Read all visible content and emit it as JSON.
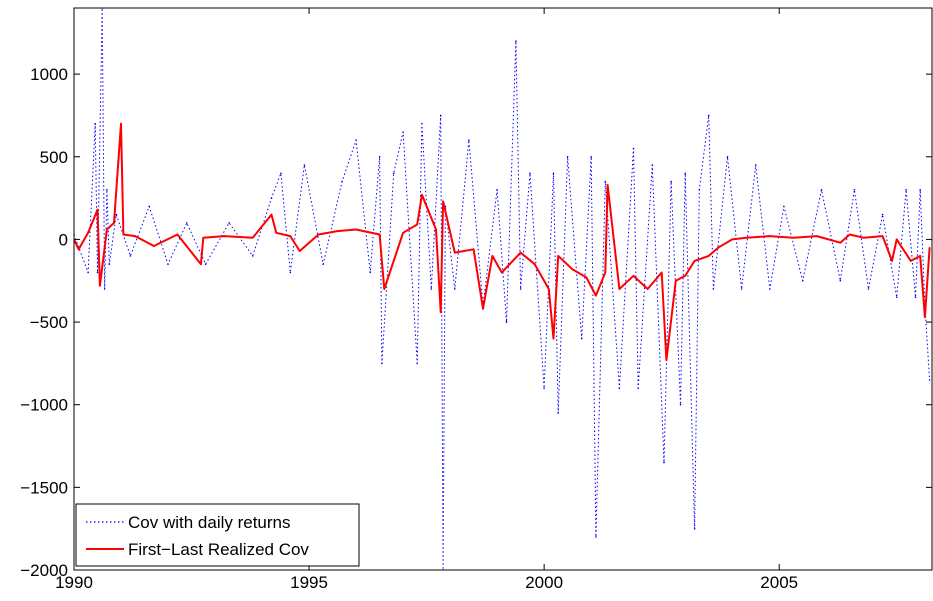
{
  "chart_data": {
    "type": "line",
    "title": "",
    "xlabel": "",
    "ylabel": "",
    "xlim": [
      1990,
      2008.25
    ],
    "ylim": [
      -2000,
      1400
    ],
    "grid": false,
    "legend_position": "bottom-left",
    "x_ticks": [
      1990,
      1995,
      2000,
      2005
    ],
    "x_tick_labels": [
      "1990",
      "1995",
      "2000",
      "2005"
    ],
    "y_ticks": [
      -2000,
      -1500,
      -1000,
      -500,
      0,
      500,
      1000
    ],
    "y_tick_labels": [
      "−2000",
      "−1500",
      "−1000",
      "−500",
      "0",
      "500",
      "1000"
    ],
    "series": [
      {
        "name": "Cov with daily returns",
        "color": "#0000ff",
        "line_style": "dotted",
        "x": [
          1990.0,
          1990.3,
          1990.45,
          1990.5,
          1990.6,
          1990.65,
          1990.7,
          1990.75,
          1990.9,
          1991.2,
          1991.6,
          1992.0,
          1992.4,
          1992.8,
          1993.3,
          1993.8,
          1994.2,
          1994.4,
          1994.6,
          1994.9,
          1995.3,
          1995.7,
          1996.0,
          1996.3,
          1996.5,
          1996.55,
          1996.8,
          1997.0,
          1997.3,
          1997.4,
          1997.6,
          1997.8,
          1997.85,
          1997.9,
          1998.1,
          1998.4,
          1998.7,
          1999.0,
          1999.2,
          1999.4,
          1999.5,
          1999.7,
          2000.0,
          2000.2,
          2000.3,
          2000.5,
          2000.8,
          2001.0,
          2001.1,
          2001.3,
          2001.6,
          2001.9,
          2002.0,
          2002.3,
          2002.55,
          2002.7,
          2002.9,
          2003.0,
          2003.2,
          2003.3,
          2003.5,
          2003.6,
          2003.9,
          2004.2,
          2004.5,
          2004.8,
          2005.1,
          2005.5,
          2005.9,
          2006.3,
          2006.6,
          2006.9,
          2007.2,
          2007.5,
          2007.7,
          2007.9,
          2008.0,
          2008.1,
          2008.2
        ],
        "values": [
          30,
          -200,
          700,
          -200,
          1400,
          -300,
          300,
          -150,
          150,
          -100,
          200,
          -150,
          100,
          -150,
          100,
          -100,
          250,
          400,
          -200,
          450,
          -150,
          350,
          600,
          -200,
          500,
          -750,
          400,
          650,
          -750,
          700,
          -300,
          750,
          -2000,
          200,
          -300,
          600,
          -400,
          300,
          -500,
          1200,
          -300,
          400,
          -900,
          400,
          -1050,
          500,
          -600,
          500,
          -1800,
          350,
          -900,
          550,
          -900,
          450,
          -1350,
          350,
          -1000,
          400,
          -1750,
          300,
          750,
          -300,
          500,
          -300,
          450,
          -300,
          200,
          -250,
          300,
          -250,
          300,
          -300,
          150,
          -350,
          300,
          -350,
          300,
          -400,
          -850
        ]
      },
      {
        "name": "First−Last Realized Cov",
        "color": "#ff0000",
        "line_style": "solid",
        "x": [
          1990.0,
          1990.1,
          1990.3,
          1990.5,
          1990.55,
          1990.7,
          1990.85,
          1991.0,
          1991.05,
          1991.3,
          1991.7,
          1992.2,
          1992.7,
          1992.75,
          1993.2,
          1993.8,
          1994.2,
          1994.3,
          1994.6,
          1994.8,
          1995.2,
          1995.6,
          1996.0,
          1996.5,
          1996.6,
          1997.0,
          1997.3,
          1997.4,
          1997.7,
          1997.8,
          1997.85,
          1998.1,
          1998.5,
          1998.7,
          1998.9,
          1999.1,
          1999.5,
          1999.8,
          2000.1,
          2000.2,
          2000.3,
          2000.6,
          2000.9,
          2001.1,
          2001.3,
          2001.35,
          2001.6,
          2001.9,
          2002.2,
          2002.5,
          2002.6,
          2002.8,
          2003.0,
          2003.2,
          2003.5,
          2003.7,
          2004.0,
          2004.3,
          2004.8,
          2005.3,
          2005.8,
          2006.3,
          2006.5,
          2006.8,
          2007.2,
          2007.4,
          2007.5,
          2007.8,
          2008.0,
          2008.1,
          2008.2
        ],
        "values": [
          0,
          -60,
          40,
          180,
          -280,
          60,
          100,
          700,
          30,
          20,
          -40,
          30,
          -150,
          10,
          20,
          10,
          150,
          40,
          20,
          -70,
          30,
          50,
          60,
          30,
          -300,
          40,
          90,
          270,
          60,
          -440,
          230,
          -80,
          -60,
          -420,
          -100,
          -200,
          -80,
          -150,
          -300,
          -600,
          -100,
          -180,
          -230,
          -340,
          -200,
          330,
          -300,
          -220,
          -300,
          -200,
          -730,
          -250,
          -220,
          -130,
          -100,
          -50,
          0,
          10,
          20,
          10,
          20,
          -20,
          30,
          10,
          20,
          -130,
          0,
          -130,
          -100,
          -470,
          -50
        ]
      }
    ]
  },
  "legend": {
    "items": [
      {
        "label": "Cov with daily returns",
        "color": "#0000ff",
        "line_style": "dotted"
      },
      {
        "label": "First−Last Realized Cov",
        "color": "#ff0000",
        "line_style": "solid"
      }
    ]
  }
}
